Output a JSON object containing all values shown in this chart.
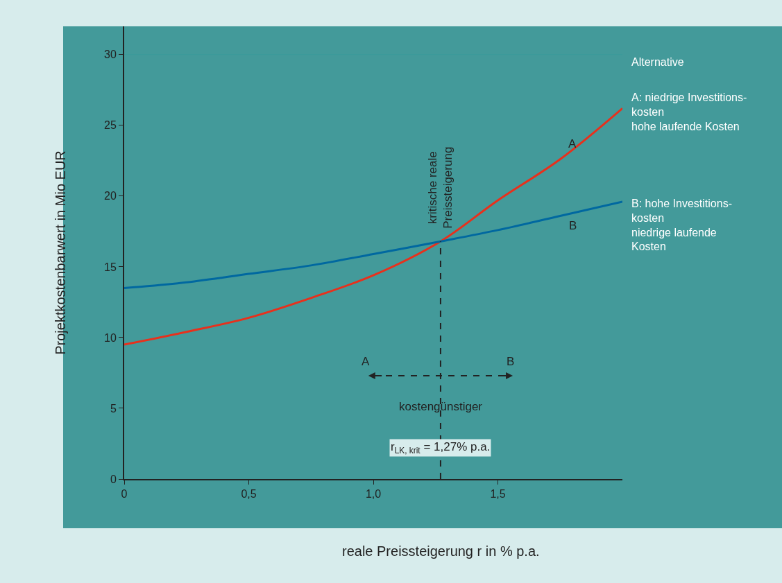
{
  "chart_data": {
    "type": "line",
    "xlabel": "reale Preissteigerung r in % p.a.",
    "ylabel": "Projektkostenbarwert in Mio EUR",
    "x": [
      0,
      0.25,
      0.5,
      0.75,
      1.0,
      1.27,
      1.5,
      1.75,
      2.0
    ],
    "series": [
      {
        "name": "A",
        "color": "#e8301c",
        "values": [
          9.5,
          10.4,
          11.4,
          12.8,
          14.4,
          16.8,
          19.7,
          22.6,
          26.2
        ]
      },
      {
        "name": "B",
        "color": "#0068a0",
        "values": [
          13.5,
          13.9,
          14.5,
          15.1,
          15.9,
          16.8,
          17.6,
          18.6,
          19.6
        ]
      }
    ],
    "xlim": [
      0,
      2
    ],
    "ylim": [
      0,
      32
    ],
    "xticks": [
      0,
      {
        "value": 0.5,
        "label": "0,5"
      },
      {
        "value": 1.0,
        "label": "1,0"
      },
      {
        "value": 1.5,
        "label": "1,5"
      }
    ],
    "yticks": [
      0,
      5,
      10,
      15,
      20,
      25,
      30
    ],
    "ref_lines": [
      {
        "axis": "x",
        "value": 1.27,
        "label": "kritische reale Preissteigerung",
        "line_style": "dashed",
        "color": "#222222"
      },
      {
        "axis": "y",
        "value": 30,
        "label": null,
        "color": "#3a9a9a",
        "line_style": "solid"
      }
    ],
    "annotations": [
      {
        "text": "kostengünstiger",
        "x": 1.27,
        "y": 7.3
      },
      "r$_{LK, krit}$ = 1,27% p.a.",
      "Alternative",
      "A: niedrige Investitions-\nkosten\nhohe laufende Kosten",
      "B: hohe Investitions-\nkosten\nniedrige laufende\nKosten"
    ],
    "grid": false,
    "legend": false,
    "marker": "none",
    "line_style": "solid"
  }
}
